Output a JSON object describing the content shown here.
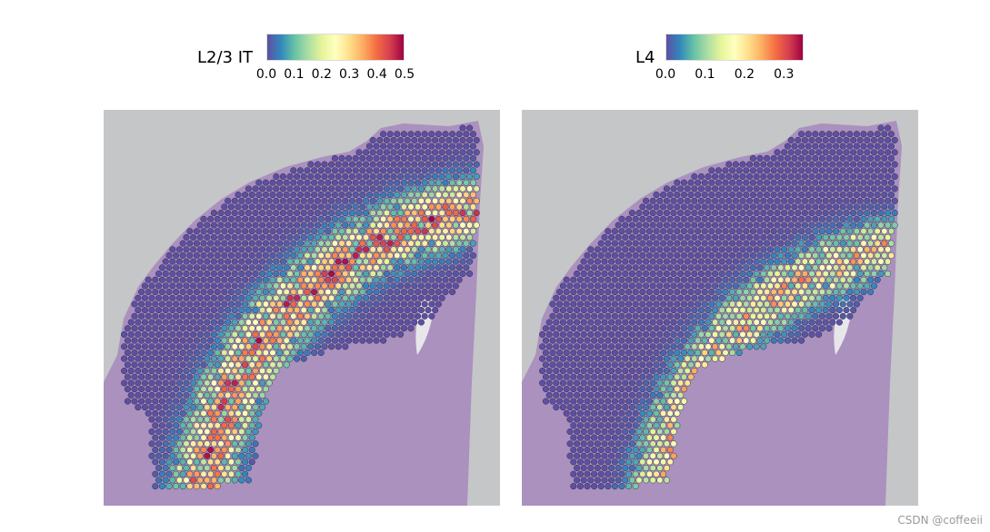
{
  "chart_data": [
    {
      "type": "heatmap",
      "title": "",
      "legend_title": "L2/3 IT",
      "colorbar_ticks": [
        "0.0",
        "0.1",
        "0.2",
        "0.3",
        "0.4",
        "0.5"
      ],
      "range": [
        0,
        0.5
      ],
      "colormap": [
        "#5e4fa2",
        "#3288bd",
        "#66c2a5",
        "#abdda4",
        "#e6f598",
        "#ffffbf",
        "#fee08b",
        "#fdae61",
        "#f46d43",
        "#d53e4f",
        "#9e0142"
      ],
      "legend_position": "top",
      "description_layer": "outer cortical band high values"
    },
    {
      "type": "heatmap",
      "title": "",
      "legend_title": "L4",
      "colorbar_ticks": [
        "0.0",
        "0.1",
        "0.2",
        "0.3"
      ],
      "range": [
        0,
        0.35
      ],
      "colormap": [
        "#5e4fa2",
        "#3288bd",
        "#66c2a5",
        "#abdda4",
        "#e6f598",
        "#ffffbf",
        "#fee08b",
        "#fdae61",
        "#f46d43",
        "#d53e4f",
        "#9e0142"
      ],
      "legend_position": "top",
      "description_layer": "inner cortical band moderate values"
    }
  ],
  "colors": {
    "background": "#c4c6c8",
    "tissue": "#a98bbd",
    "spot_low": "#5e4fa2",
    "spot_outline": "#2b2b4a"
  },
  "watermark": "CSDN @coffeeii"
}
